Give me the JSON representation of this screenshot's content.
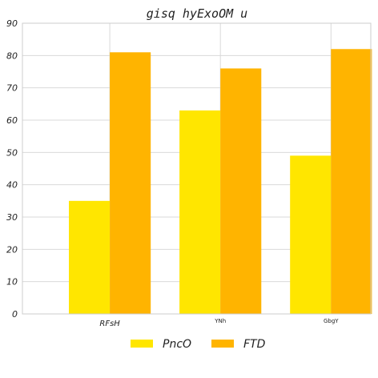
{
  "chart_data": {
    "type": "bar",
    "title": "gisq hyExoOM u",
    "categories": [
      "RFsH",
      "YNh",
      "GbgY"
    ],
    "series": [
      {
        "name": "PncO",
        "values": [
          35,
          63,
          49
        ],
        "color": "#FFE600"
      },
      {
        "name": "FTD",
        "values": [
          81,
          76,
          82
        ],
        "color": "#FFB400"
      }
    ],
    "ylim": [
      0,
      90
    ],
    "yticks": [
      "0",
      "10",
      "20",
      "30",
      "40",
      "50",
      "60",
      "70",
      "80",
      "90"
    ],
    "grid": true,
    "legend": "bottom-center"
  }
}
